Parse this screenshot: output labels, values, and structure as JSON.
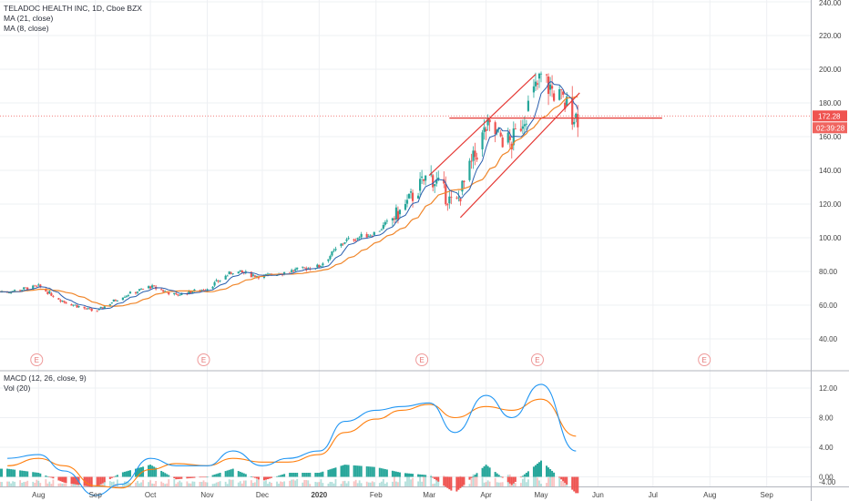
{
  "header": {
    "symbol_line": "TELADOC HEALTH INC, 1D, Cboe BZX",
    "ma21_label": "MA (21, close)",
    "ma8_label": "MA (8, close)"
  },
  "macd_header": {
    "macd_label": "MACD (12, 26, close, 9)",
    "vol_label": "Vol (20)"
  },
  "price_axis": {
    "ticks": [
      "240.00",
      "220.00",
      "200.00",
      "180.00",
      "160.00",
      "140.00",
      "120.00",
      "100.00",
      "80.00",
      "60.00",
      "40.00"
    ],
    "tick_values": [
      240,
      220,
      200,
      180,
      160,
      140,
      120,
      100,
      80,
      60,
      40
    ],
    "current_price": "172.28",
    "countdown": "02:39:28"
  },
  "macd_axis": {
    "ticks": [
      "12.00",
      "8.00",
      "4.00",
      "0.00",
      "-4.00"
    ],
    "tick_values": [
      12,
      8,
      4,
      0,
      -4
    ]
  },
  "time_axis": {
    "labels": [
      "Aug",
      "Sep",
      "Oct",
      "Nov",
      "Dec",
      "2020",
      "Feb",
      "Mar",
      "Apr",
      "May",
      "Jun",
      "Jul",
      "Aug",
      "Sep"
    ]
  },
  "earnings_marker": "E",
  "colors": {
    "up": "#26a69a",
    "down": "#ef5350",
    "ma21": "#f0862a",
    "ma8": "#2a5fae",
    "macd": "#2196f3",
    "signal": "#ff7f0e",
    "price_line": "#ef5350",
    "channel": "#e53935",
    "axis_text": "#444444"
  },
  "chart_data": [
    {
      "type": "candlestick",
      "title": "TELADOC HEALTH INC, 1D, Cboe BZX",
      "ylim": [
        30,
        240
      ],
      "current_price": 172.28,
      "trend_channel": {
        "upper": [
          [
            "2020-03-01",
            137
          ],
          [
            "2020-04-28",
            197
          ]
        ],
        "lower": [
          [
            "2020-03-18",
            112
          ],
          [
            "2020-05-22",
            186
          ]
        ],
        "horizontal": [
          [
            "2020-03-12",
            171
          ],
          [
            "2020-07-06",
            171
          ]
        ]
      },
      "series": [
        {
          "name": "Close",
          "x": [
            "2019-07-15",
            "2019-08-01",
            "2019-08-15",
            "2019-09-01",
            "2019-09-15",
            "2019-10-01",
            "2019-10-15",
            "2019-11-01",
            "2019-11-15",
            "2019-12-01",
            "2019-12-15",
            "2020-01-01",
            "2020-01-15",
            "2020-02-01",
            "2020-02-15",
            "2020-03-01",
            "2020-03-15",
            "2020-04-01",
            "2020-04-15",
            "2020-05-01",
            "2020-05-20"
          ],
          "values": [
            68,
            71,
            62,
            56,
            65,
            71,
            66,
            70,
            80,
            77,
            80,
            83,
            98,
            103,
            116,
            138,
            118,
            165,
            156,
            195,
            172
          ]
        }
      ]
    },
    {
      "type": "line",
      "title": "MACD (12, 26, close, 9)",
      "ylim": [
        -4.5,
        13
      ],
      "series": [
        {
          "name": "MACD",
          "x": [
            "2019-07-15",
            "2019-08-01",
            "2019-08-15",
            "2019-09-01",
            "2019-09-15",
            "2019-10-01",
            "2019-10-15",
            "2019-11-01",
            "2019-11-15",
            "2019-12-01",
            "2019-12-15",
            "2020-01-01",
            "2020-01-15",
            "2020-02-01",
            "2020-02-15",
            "2020-03-01",
            "2020-03-15",
            "2020-04-01",
            "2020-04-15",
            "2020-05-01",
            "2020-05-20"
          ],
          "values": [
            2.5,
            3,
            0.8,
            -2.5,
            -1,
            2.5,
            1.5,
            1.5,
            3.5,
            1.5,
            2.5,
            3.5,
            7.5,
            9,
            9.5,
            10,
            6,
            11,
            8,
            12.5,
            3.5
          ]
        },
        {
          "name": "Signal",
          "x": [
            "2019-07-15",
            "2019-08-01",
            "2019-08-15",
            "2019-09-01",
            "2019-09-15",
            "2019-10-01",
            "2019-10-15",
            "2019-11-01",
            "2019-11-15",
            "2019-12-01",
            "2019-12-15",
            "2020-01-01",
            "2020-01-15",
            "2020-02-01",
            "2020-02-15",
            "2020-03-01",
            "2020-03-15",
            "2020-04-01",
            "2020-04-15",
            "2020-05-01",
            "2020-05-20"
          ],
          "values": [
            1.5,
            2.5,
            1.5,
            -1.2,
            -1.5,
            1,
            1.8,
            1.5,
            2.5,
            2,
            2,
            3,
            6,
            7.8,
            9,
            9.8,
            8,
            9.5,
            9,
            10.5,
            5.5
          ]
        }
      ]
    }
  ]
}
